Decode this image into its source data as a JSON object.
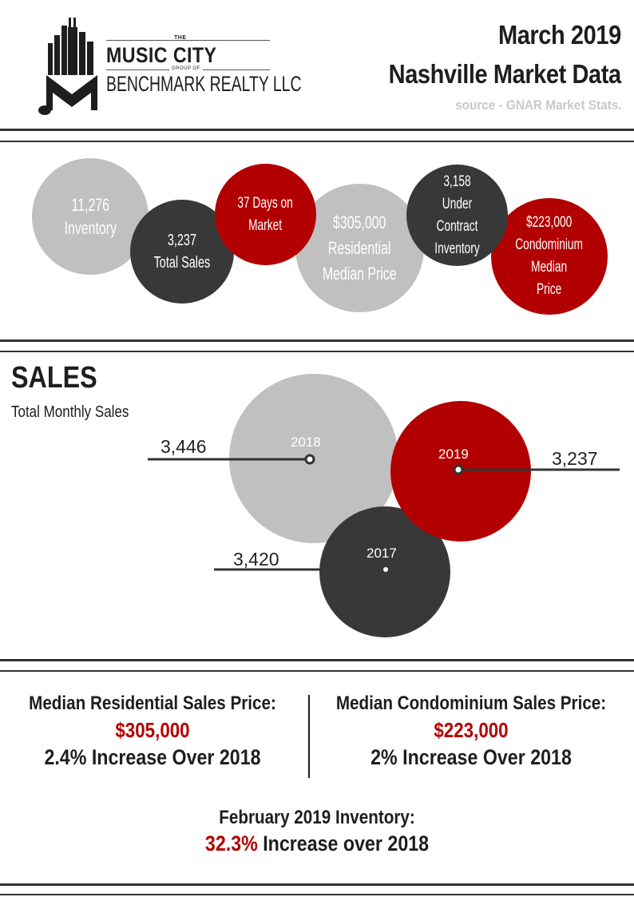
{
  "header": {
    "title_line1": "March 2019",
    "title_line2": "Nashville Market Data",
    "source": "source - GNAR Market Stats."
  },
  "logo": {
    "the": "THE",
    "name": "MUSIC CITY",
    "group_of": "GROUP OF",
    "company": "BENCHMARK REALTY LLC"
  },
  "bubbles": [
    {
      "line1": "11,276",
      "line2": "Inventory",
      "color": "#c0c0c0"
    },
    {
      "line1": "3,237",
      "line2": "Total Sales",
      "color": "#383838"
    },
    {
      "line1": "37 Days on",
      "line2": "Market",
      "color": "#b20000"
    },
    {
      "line1": "$305,000",
      "line2": "Residential",
      "line3": "Median Price",
      "color": "#c0c0c0"
    },
    {
      "line1": "3,158",
      "line2": "Under Contract",
      "line3": "Inventory",
      "color": "#383838"
    },
    {
      "line1": "$223,000",
      "line2": "Condominium",
      "line3": "Median",
      "line4": "Price",
      "color": "#b20000"
    }
  ],
  "sales": {
    "heading": "SALES",
    "subheading": "Total Monthly Sales",
    "years": [
      {
        "year": "2018",
        "value": "3,446"
      },
      {
        "year": "2019",
        "value": "3,237"
      },
      {
        "year": "2017",
        "value": "3,420"
      }
    ]
  },
  "stats": {
    "residential": {
      "label": "Median Residential Sales Price:",
      "price": "$305,000",
      "change": "2.4% Increase Over 2018"
    },
    "condo": {
      "label": "Median Condominium Sales Price:",
      "price": "$223,000",
      "change": "2% Increase Over 2018"
    },
    "inventory": {
      "label": "February 2019 Inventory:",
      "percent": "32.3%",
      "change": " Increase over 2018"
    }
  },
  "colors": {
    "accent": "#b20000",
    "dark": "#383838",
    "light": "#c0c0c0"
  }
}
